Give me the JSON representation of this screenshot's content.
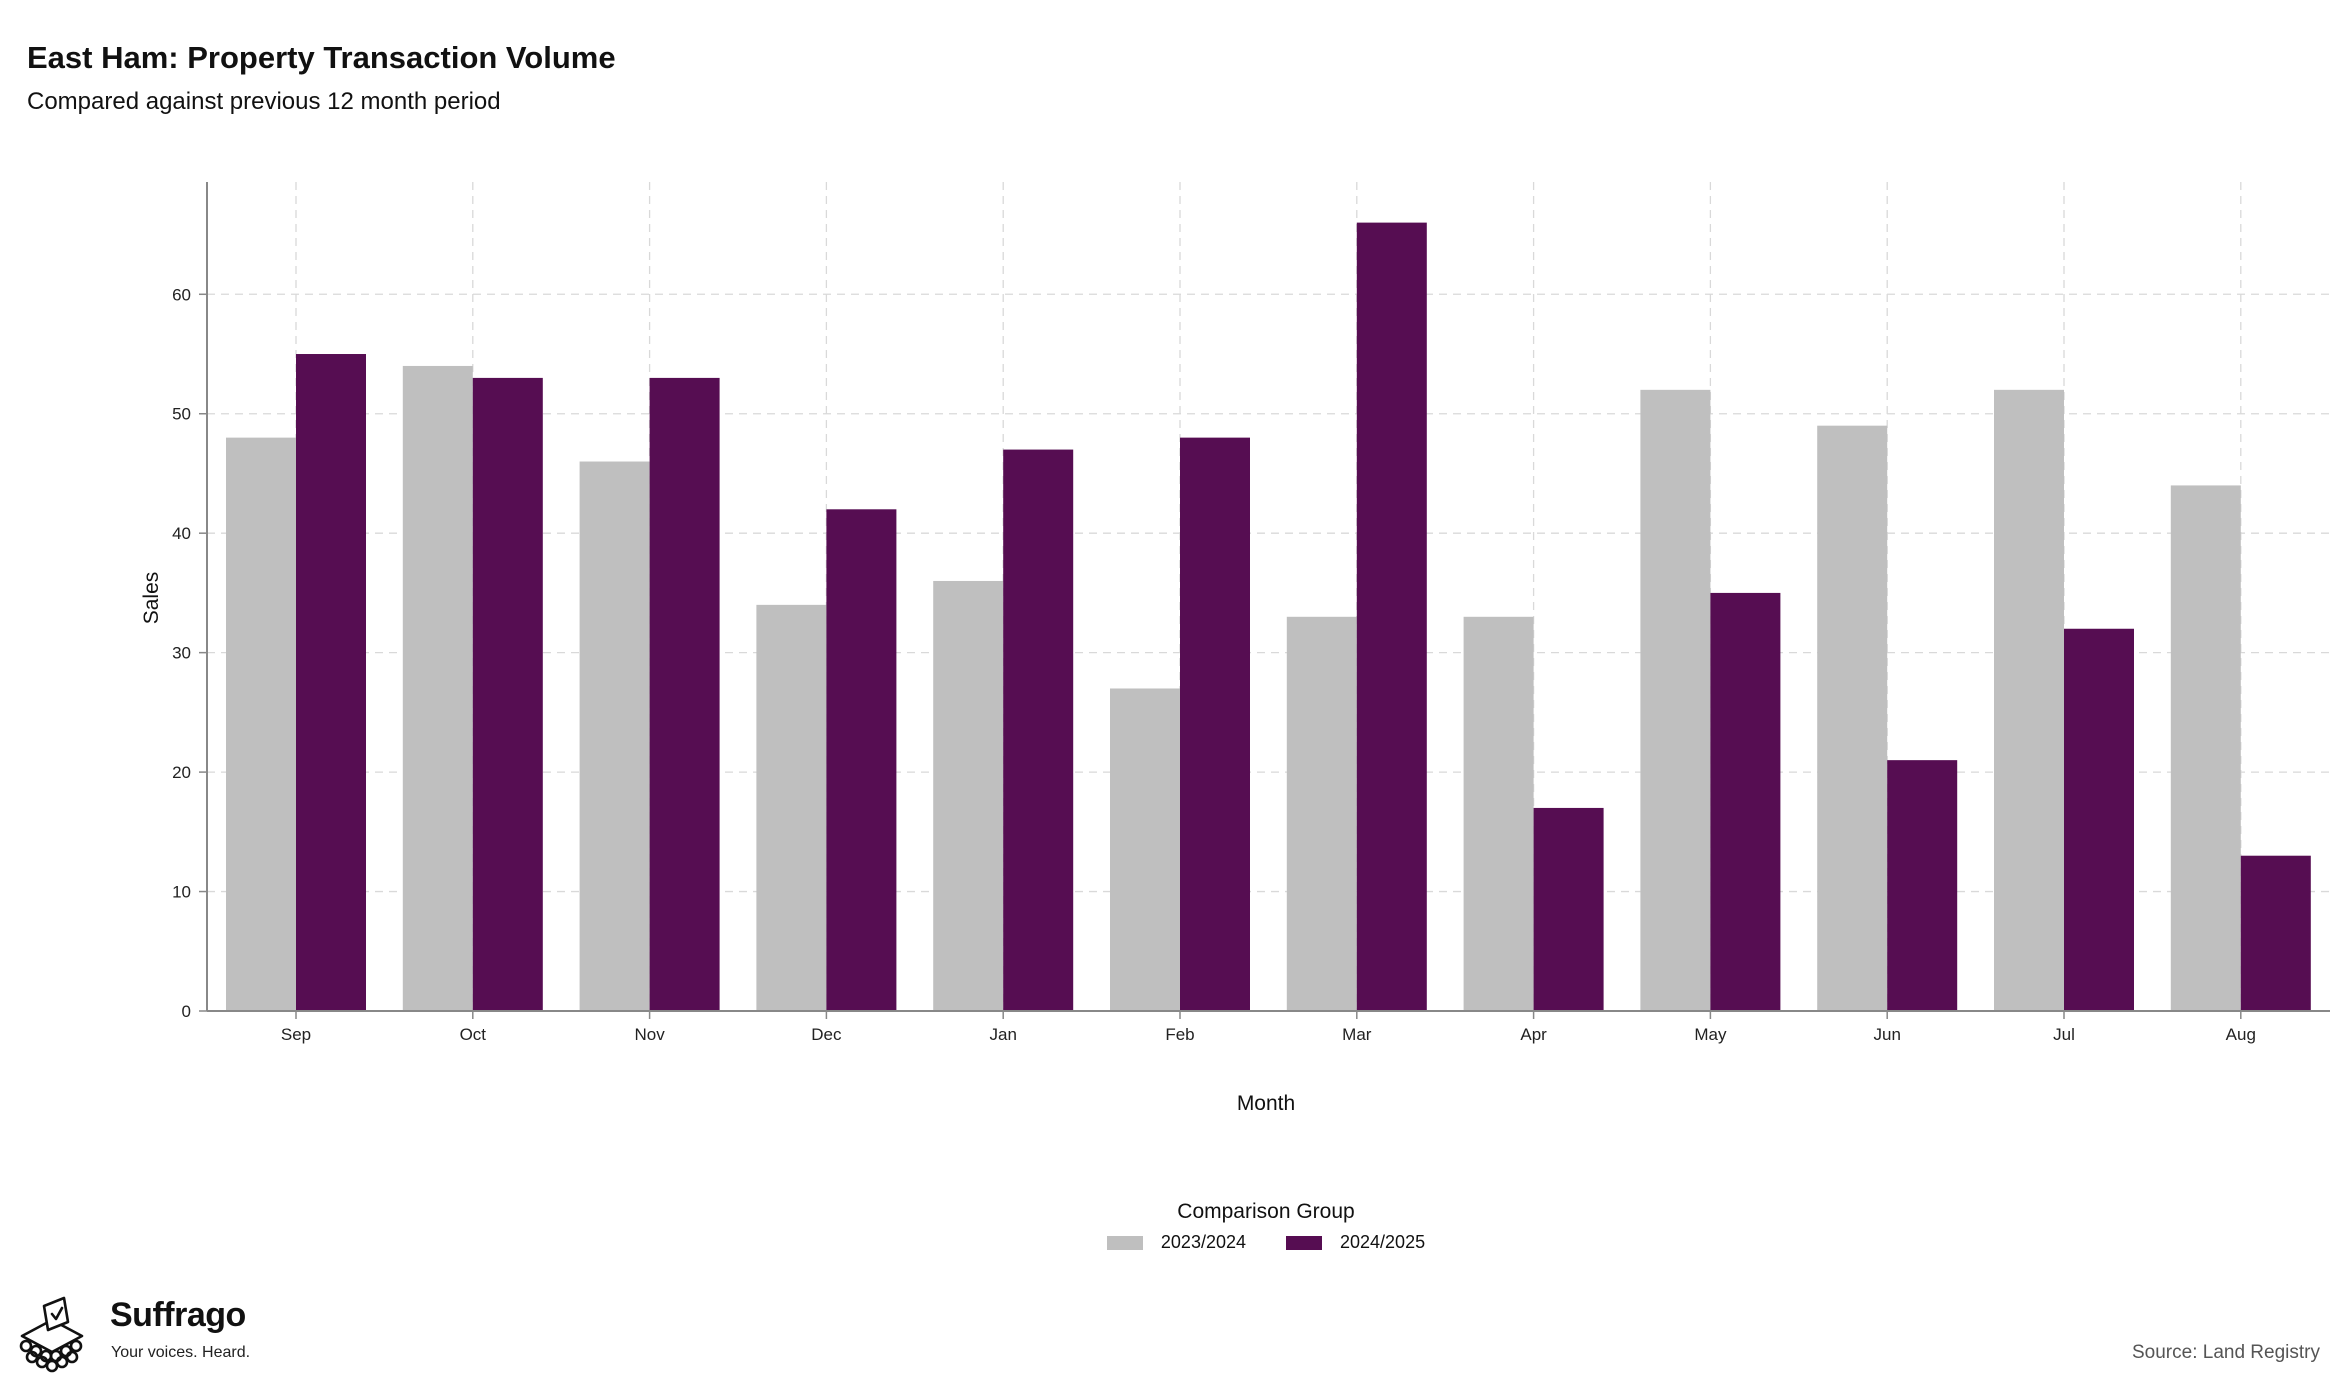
{
  "header": {
    "title": "East Ham: Property Transaction Volume",
    "subtitle": "Compared against previous 12 month period"
  },
  "chart_data": {
    "type": "bar",
    "title": "East Ham: Property Transaction Volume",
    "subtitle": "Compared against previous 12 month period",
    "xlabel": "Month",
    "ylabel": "Sales",
    "categories": [
      "Sep",
      "Oct",
      "Nov",
      "Dec",
      "Jan",
      "Feb",
      "Mar",
      "Apr",
      "May",
      "Jun",
      "Jul",
      "Aug"
    ],
    "series": [
      {
        "name": "2023/2024",
        "color": "#bfbfbf",
        "values": [
          48,
          54,
          46,
          34,
          36,
          27,
          33,
          33,
          52,
          49,
          52,
          44
        ]
      },
      {
        "name": "2024/2025",
        "color": "#560d52",
        "values": [
          55,
          53,
          53,
          42,
          47,
          48,
          66,
          17,
          35,
          21,
          32,
          13
        ]
      }
    ],
    "yticks": [
      0,
      10,
      20,
      30,
      40,
      50,
      60
    ],
    "ylim": [
      0,
      69.4
    ],
    "grid": true,
    "legend": {
      "title": "Comparison Group",
      "position": "bottom"
    }
  },
  "footer": {
    "brand_name": "Suffrago",
    "brand_tagline": "Your voices. Heard.",
    "logo_icon": "ballot-box-icon",
    "source": "Source: Land Registry"
  }
}
